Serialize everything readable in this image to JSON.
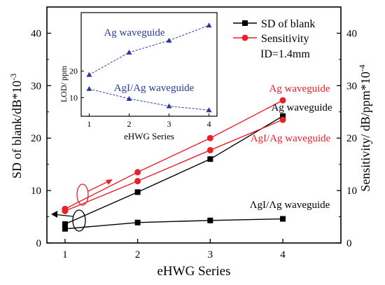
{
  "chart_data": {
    "type": "line",
    "xlabel": "eHWG Series",
    "ylabel_left": "SD of blank/dB*10",
    "ylabel_left_exp": "-3",
    "ylabel_right": "Sensitivity/ dB/ppm*10",
    "ylabel_right_exp": "-4",
    "x_ticks": [
      "1",
      "2",
      "3",
      "4"
    ],
    "xlim": [
      0.75,
      4.8
    ],
    "ylim_left": [
      0,
      45
    ],
    "ylim_right": [
      0,
      45
    ],
    "y_ticks": [
      "0",
      "10",
      "20",
      "30",
      "40"
    ],
    "legend": {
      "position": "top-right",
      "entries": [
        "SD of blank",
        "Sensitivity"
      ],
      "note": "ID=1.4mm"
    },
    "colors": {
      "sd": "#000000",
      "sensitivity": "#e8202a",
      "inset": "#2b3a9e"
    },
    "series": [
      {
        "group": "sd",
        "x": [
          1,
          2,
          3,
          4
        ],
        "values": [
          3.6,
          9.7,
          16.0,
          24.2
        ]
      },
      {
        "group": "sd",
        "x": [
          1,
          2,
          3,
          4
        ],
        "values": [
          2.7,
          3.9,
          4.3,
          4.6
        ]
      },
      {
        "group": "sensitivity",
        "x": [
          1,
          2,
          3,
          4
        ],
        "values": [
          6.5,
          13.5,
          20.0,
          27.2
        ]
      },
      {
        "group": "sensitivity",
        "x": [
          1,
          2,
          3,
          4
        ],
        "values": [
          6.1,
          11.8,
          17.7,
          23.5
        ]
      }
    ],
    "annotations": [
      {
        "text": "Ag waveguide",
        "color": "sensitivity"
      },
      {
        "text": "Ag waveguide",
        "color": "sd"
      },
      {
        "text": "AgI/Ag waveguide",
        "color": "sensitivity"
      },
      {
        "text": "ΛgI/Λg waveguide",
        "color": "sd"
      }
    ],
    "inset": {
      "type": "line",
      "xlabel": "eHWG Series",
      "ylabel": "LOD/ ppm",
      "x_ticks": [
        "1",
        "2",
        "3",
        "4"
      ],
      "y_ticks": [
        "10",
        "20"
      ],
      "xlim": [
        0.8,
        4.2
      ],
      "ylim": [
        3,
        42
      ],
      "series": [
        {
          "name": "Ag waveguide",
          "x": [
            1,
            2,
            3,
            4
          ],
          "values": [
            18.6,
            27.0,
            31.5,
            37.2
          ]
        },
        {
          "name": "AgI/Ag waveguide",
          "x": [
            1,
            2,
            3,
            4
          ],
          "values": [
            13.3,
            9.6,
            6.8,
            5.3
          ]
        }
      ]
    }
  }
}
